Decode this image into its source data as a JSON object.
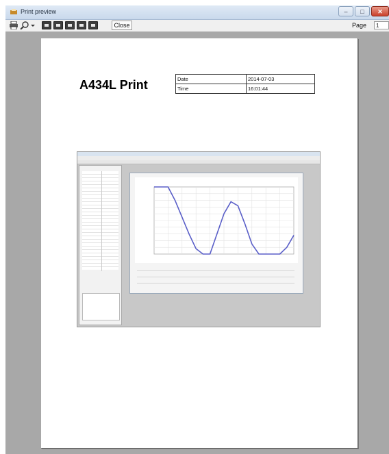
{
  "window": {
    "title": "Print preview",
    "controls": {
      "minimize": "–",
      "maximize": "□",
      "close": "✕"
    }
  },
  "toolbar": {
    "close_label": "Close",
    "page_label": "Page",
    "page_value": "1"
  },
  "document": {
    "title": "A434L Print",
    "info": [
      {
        "label": "Date",
        "value": "2014-07-03"
      },
      {
        "label": "Time",
        "value": "16:01:44"
      }
    ]
  },
  "colors": {
    "curve": "#5a5fc8",
    "background": "#a8a8a8",
    "paper": "#ffffff"
  },
  "chart_data": {
    "type": "line",
    "title": "",
    "xlabel": "",
    "ylabel": "",
    "x": [
      0,
      5,
      10,
      15,
      20,
      25,
      30,
      35,
      40,
      45,
      50,
      55,
      60,
      65,
      70,
      75,
      80,
      85,
      90,
      95,
      100
    ],
    "series": [
      {
        "values": [
          100,
          100,
          100,
          80,
          55,
          30,
          8,
          0,
          0,
          30,
          60,
          78,
          72,
          45,
          15,
          0,
          0,
          0,
          0,
          10,
          28
        ]
      }
    ],
    "xlim": [
      0,
      100
    ],
    "ylim": [
      0,
      100
    ],
    "grid": true
  }
}
